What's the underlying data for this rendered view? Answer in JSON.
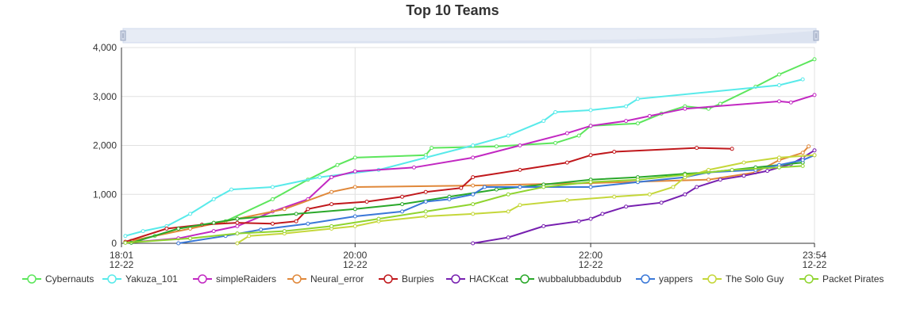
{
  "chart_data": {
    "type": "line",
    "title": "Top 10 Teams",
    "xlabel": "",
    "ylabel": "",
    "y_ticks": [
      "0",
      "1,000",
      "2,000",
      "3,000",
      "4,000"
    ],
    "ylim": [
      0,
      4000
    ],
    "x_ticks": [
      {
        "time": "18:01",
        "date": "12-22",
        "hour": 18.0167
      },
      {
        "time": "20:00",
        "date": "12-22",
        "hour": 20.0
      },
      {
        "time": "22:00",
        "date": "12-22",
        "hour": 22.0
      },
      {
        "time": "23:54",
        "date": "12-22",
        "hour": 23.9
      }
    ],
    "xlim_hours": [
      18.0167,
      23.9
    ],
    "grid": true,
    "legend_position": "bottom",
    "data_zoom_slider": true,
    "series": [
      {
        "name": "Cybernauts",
        "color": "#5ce65c",
        "points": [
          [
            18.1,
            50
          ],
          [
            18.3,
            150
          ],
          [
            18.5,
            300
          ],
          [
            18.9,
            450
          ],
          [
            19.3,
            900
          ],
          [
            19.6,
            1300
          ],
          [
            19.85,
            1600
          ],
          [
            20.0,
            1750
          ],
          [
            20.6,
            1800
          ],
          [
            20.65,
            1950
          ],
          [
            21.2,
            1980
          ],
          [
            21.7,
            2050
          ],
          [
            21.9,
            2200
          ],
          [
            22.0,
            2400
          ],
          [
            22.4,
            2450
          ],
          [
            22.6,
            2650
          ],
          [
            22.8,
            2800
          ],
          [
            23.0,
            2750
          ],
          [
            23.1,
            2850
          ],
          [
            23.4,
            3200
          ],
          [
            23.6,
            3450
          ],
          [
            23.9,
            3760
          ]
        ]
      },
      {
        "name": "Yakuza_101",
        "color": "#58eaea",
        "points": [
          [
            18.05,
            150
          ],
          [
            18.2,
            250
          ],
          [
            18.4,
            350
          ],
          [
            18.6,
            600
          ],
          [
            18.8,
            900
          ],
          [
            18.95,
            1100
          ],
          [
            19.3,
            1150
          ],
          [
            19.7,
            1350
          ],
          [
            20.2,
            1500
          ],
          [
            20.6,
            1750
          ],
          [
            21.0,
            2000
          ],
          [
            21.3,
            2200
          ],
          [
            21.6,
            2500
          ],
          [
            21.7,
            2680
          ],
          [
            22.0,
            2720
          ],
          [
            22.3,
            2800
          ],
          [
            22.4,
            2950
          ],
          [
            23.6,
            3230
          ],
          [
            23.8,
            3350
          ]
        ]
      },
      {
        "name": "simpleRaiders",
        "color": "#c228c2",
        "points": [
          [
            18.1,
            20
          ],
          [
            18.5,
            100
          ],
          [
            18.8,
            250
          ],
          [
            19.0,
            350
          ],
          [
            19.3,
            650
          ],
          [
            19.6,
            900
          ],
          [
            19.8,
            1350
          ],
          [
            20.0,
            1470
          ],
          [
            20.5,
            1550
          ],
          [
            21.0,
            1750
          ],
          [
            21.4,
            2000
          ],
          [
            21.8,
            2250
          ],
          [
            22.0,
            2400
          ],
          [
            22.3,
            2500
          ],
          [
            22.5,
            2600
          ],
          [
            22.8,
            2750
          ],
          [
            23.6,
            2900
          ],
          [
            23.7,
            2880
          ],
          [
            23.9,
            3030
          ]
        ]
      },
      {
        "name": "Neural_error",
        "color": "#e0883a",
        "points": [
          [
            18.1,
            50
          ],
          [
            18.6,
            300
          ],
          [
            19.0,
            500
          ],
          [
            19.4,
            700
          ],
          [
            19.8,
            1050
          ],
          [
            20.0,
            1150
          ],
          [
            21.0,
            1180
          ],
          [
            22.0,
            1230
          ],
          [
            23.0,
            1300
          ],
          [
            23.4,
            1450
          ],
          [
            23.6,
            1700
          ],
          [
            23.8,
            1850
          ],
          [
            23.85,
            1980
          ]
        ]
      },
      {
        "name": "Burpies",
        "color": "#c0181c",
        "points": [
          [
            18.05,
            30
          ],
          [
            18.4,
            300
          ],
          [
            18.7,
            380
          ],
          [
            19.0,
            420
          ],
          [
            19.3,
            400
          ],
          [
            19.5,
            450
          ],
          [
            19.6,
            700
          ],
          [
            19.8,
            800
          ],
          [
            20.1,
            850
          ],
          [
            20.4,
            950
          ],
          [
            20.6,
            1050
          ],
          [
            20.9,
            1130
          ],
          [
            21.0,
            1350
          ],
          [
            21.4,
            1500
          ],
          [
            21.8,
            1650
          ],
          [
            22.0,
            1800
          ],
          [
            22.2,
            1870
          ],
          [
            22.9,
            1950
          ],
          [
            23.2,
            1930
          ]
        ]
      },
      {
        "name": "HACKcat",
        "color": "#7720b0",
        "points": [
          [
            21.0,
            0
          ],
          [
            21.3,
            120
          ],
          [
            21.6,
            350
          ],
          [
            21.9,
            450
          ],
          [
            22.0,
            500
          ],
          [
            22.1,
            600
          ],
          [
            22.3,
            750
          ],
          [
            22.6,
            830
          ],
          [
            22.8,
            1000
          ],
          [
            22.9,
            1150
          ],
          [
            23.1,
            1300
          ],
          [
            23.3,
            1380
          ],
          [
            23.5,
            1480
          ],
          [
            23.7,
            1620
          ],
          [
            23.8,
            1750
          ],
          [
            23.9,
            1900
          ]
        ]
      },
      {
        "name": "wubbalubbadubdub",
        "color": "#2aa82a",
        "points": [
          [
            18.1,
            10
          ],
          [
            18.5,
            300
          ],
          [
            18.8,
            420
          ],
          [
            19.0,
            500
          ],
          [
            19.5,
            600
          ],
          [
            20.0,
            700
          ],
          [
            20.4,
            800
          ],
          [
            20.8,
            950
          ],
          [
            21.2,
            1100
          ],
          [
            21.6,
            1200
          ],
          [
            22.0,
            1300
          ],
          [
            22.4,
            1350
          ],
          [
            22.8,
            1420
          ],
          [
            23.0,
            1450
          ],
          [
            23.4,
            1550
          ],
          [
            23.8,
            1650
          ]
        ]
      },
      {
        "name": "yappers",
        "color": "#3a78d8",
        "points": [
          [
            18.5,
            0
          ],
          [
            18.9,
            150
          ],
          [
            19.2,
            280
          ],
          [
            19.6,
            400
          ],
          [
            20.0,
            550
          ],
          [
            20.4,
            650
          ],
          [
            20.6,
            850
          ],
          [
            20.8,
            900
          ],
          [
            21.0,
            1000
          ],
          [
            21.1,
            1150
          ],
          [
            21.4,
            1150
          ],
          [
            22.0,
            1150
          ],
          [
            22.4,
            1250
          ],
          [
            22.8,
            1350
          ],
          [
            23.0,
            1450
          ],
          [
            23.4,
            1500
          ],
          [
            23.6,
            1600
          ],
          [
            23.8,
            1700
          ],
          [
            23.9,
            1800
          ]
        ]
      },
      {
        "name": "The Solo Guy",
        "color": "#c5d73a",
        "points": [
          [
            19.0,
            0
          ],
          [
            19.1,
            150
          ],
          [
            19.4,
            200
          ],
          [
            19.8,
            300
          ],
          [
            20.0,
            350
          ],
          [
            20.2,
            450
          ],
          [
            20.6,
            550
          ],
          [
            21.0,
            600
          ],
          [
            21.3,
            650
          ],
          [
            21.4,
            780
          ],
          [
            21.8,
            880
          ],
          [
            22.2,
            950
          ],
          [
            22.5,
            1000
          ],
          [
            22.7,
            1150
          ],
          [
            22.8,
            1350
          ],
          [
            23.0,
            1500
          ],
          [
            23.3,
            1650
          ],
          [
            23.6,
            1750
          ],
          [
            23.9,
            1800
          ]
        ]
      },
      {
        "name": "Packet Pirates",
        "color": "#8fd42e",
        "points": [
          [
            18.05,
            10
          ],
          [
            18.6,
            100
          ],
          [
            19.0,
            200
          ],
          [
            19.4,
            250
          ],
          [
            19.8,
            350
          ],
          [
            20.2,
            500
          ],
          [
            20.6,
            650
          ],
          [
            21.0,
            800
          ],
          [
            21.3,
            1000
          ],
          [
            21.6,
            1150
          ],
          [
            22.0,
            1250
          ],
          [
            22.4,
            1300
          ],
          [
            22.8,
            1400
          ],
          [
            23.2,
            1500
          ],
          [
            23.6,
            1550
          ],
          [
            23.8,
            1580
          ]
        ]
      }
    ]
  }
}
